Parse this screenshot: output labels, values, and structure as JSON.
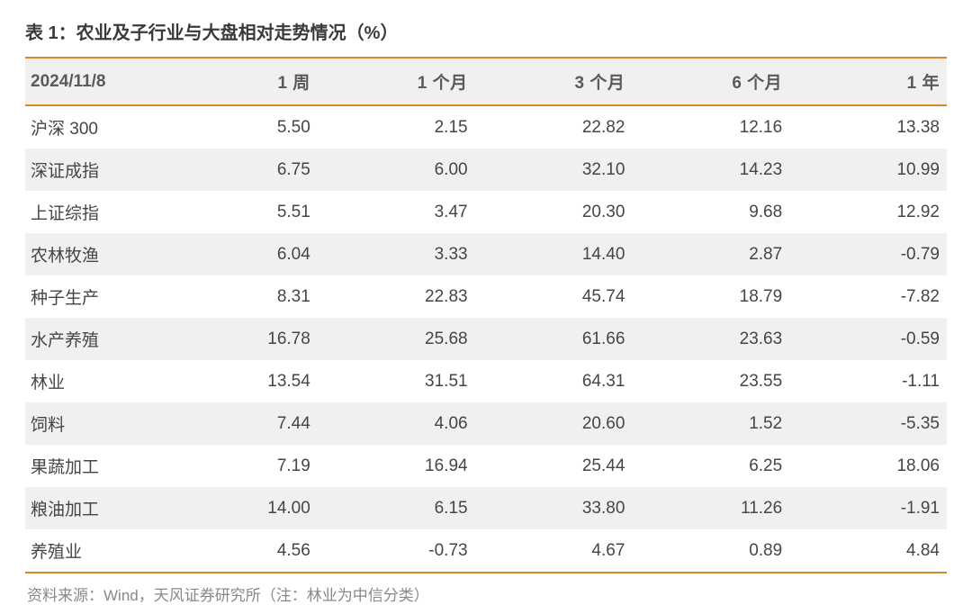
{
  "title": "表 1：农业及子行业与大盘相对走势情况（%）",
  "footnote": "资料来源：Wind，天风证券研究所（注：林业为中信分类）",
  "colors": {
    "accent_border": "#d88a2a",
    "row_stripe": "#f2f0ee",
    "row_plain": "#ffffff",
    "title_text": "#3a3a3a",
    "header_text": "#5a5a5a",
    "cell_text": "#454545",
    "footnote_text": "#888888"
  },
  "typography": {
    "title_fontsize": 20,
    "header_fontsize": 19,
    "cell_fontsize": 19,
    "footnote_fontsize": 17,
    "title_weight": "bold",
    "header_weight": "bold"
  },
  "table": {
    "type": "table",
    "columns": [
      "2024/11/8",
      "1 周",
      "1 个月",
      "3 个月",
      "6 个月",
      "1 年"
    ],
    "col_widths_pct": [
      14,
      17.2,
      17.2,
      17.2,
      17.2,
      17.2
    ],
    "alignments": [
      "left",
      "right",
      "right",
      "right",
      "right",
      "right"
    ],
    "rows": [
      [
        "沪深 300",
        "5.50",
        "2.15",
        "22.82",
        "12.16",
        "13.38"
      ],
      [
        "深证成指",
        "6.75",
        "6.00",
        "32.10",
        "14.23",
        "10.99"
      ],
      [
        "上证综指",
        "5.51",
        "3.47",
        "20.30",
        "9.68",
        "12.92"
      ],
      [
        "农林牧渔",
        "6.04",
        "3.33",
        "14.40",
        "2.87",
        "-0.79"
      ],
      [
        "种子生产",
        "8.31",
        "22.83",
        "45.74",
        "18.79",
        "-7.82"
      ],
      [
        "水产养殖",
        "16.78",
        "25.68",
        "61.66",
        "23.63",
        "-0.59"
      ],
      [
        "林业",
        "13.54",
        "31.51",
        "64.31",
        "23.55",
        "-1.11"
      ],
      [
        "饲料",
        "7.44",
        "4.06",
        "20.60",
        "1.52",
        "-5.35"
      ],
      [
        "果蔬加工",
        "7.19",
        "16.94",
        "25.44",
        "6.25",
        "18.06"
      ],
      [
        "粮油加工",
        "14.00",
        "6.15",
        "33.80",
        "11.26",
        "-1.91"
      ],
      [
        "养殖业",
        "4.56",
        "-0.73",
        "4.67",
        "0.89",
        "4.84"
      ]
    ]
  }
}
